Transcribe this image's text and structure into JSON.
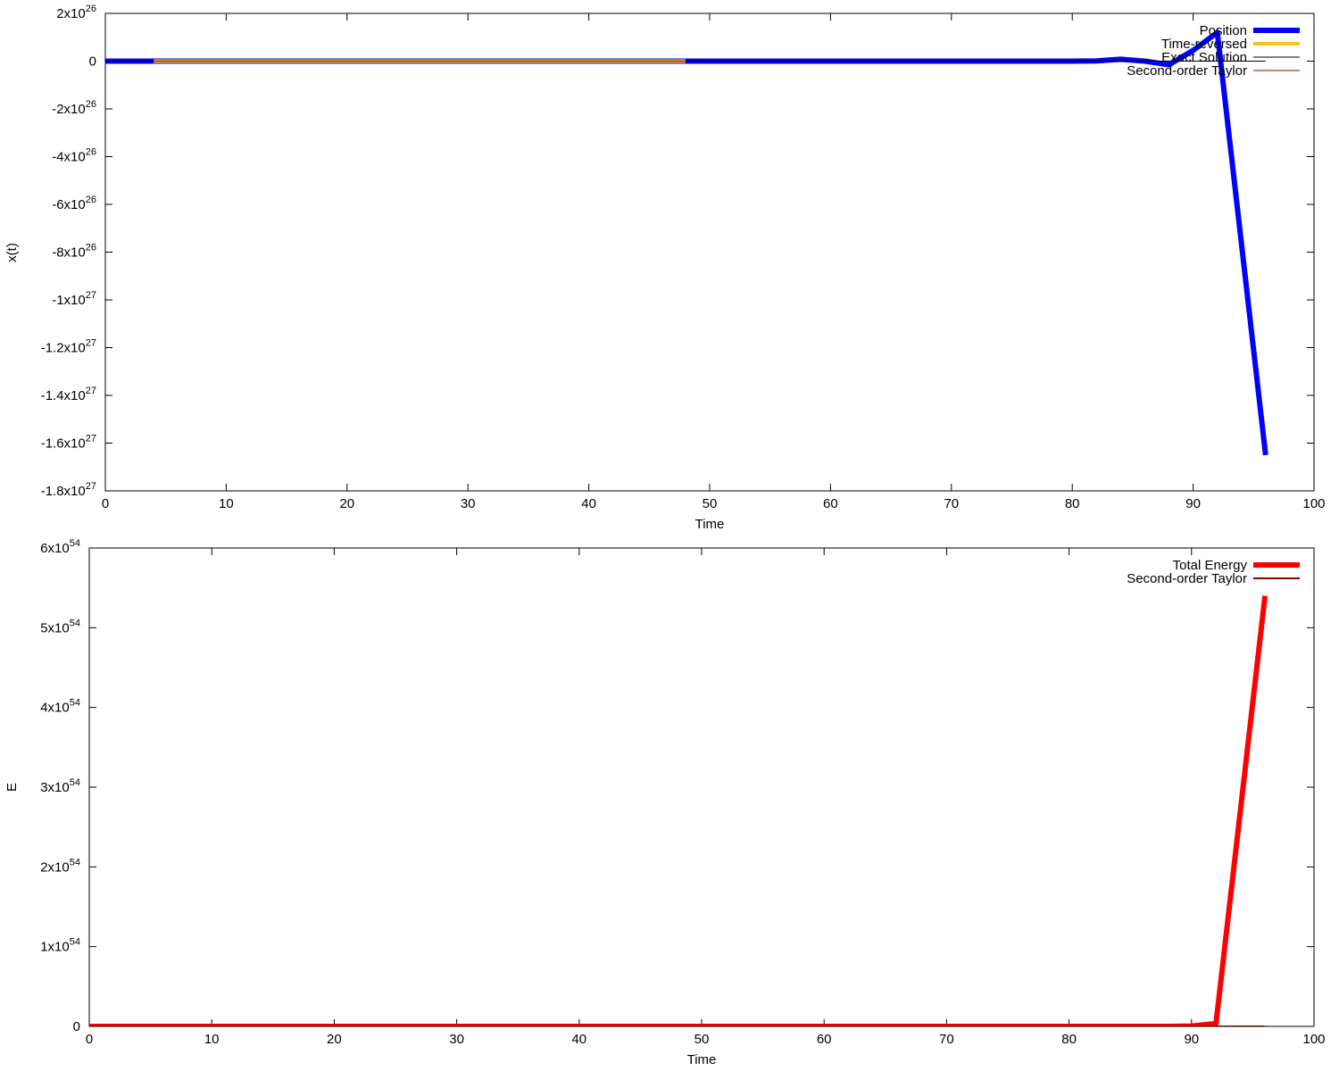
{
  "chart_data": [
    {
      "type": "line",
      "xlabel": "Time",
      "ylabel": "x(t)",
      "xlim": [
        0,
        100
      ],
      "ylim": [
        -1.8e+27,
        2e+26
      ],
      "xticks": [
        0,
        10,
        20,
        30,
        40,
        50,
        60,
        70,
        80,
        90,
        100
      ],
      "yticks": [
        {
          "value": 2e+26,
          "mant": "2x10",
          "exp": "26"
        },
        {
          "value": 0,
          "mant": "0",
          "exp": ""
        },
        {
          "value": -2e+26,
          "mant": "-2x10",
          "exp": "26"
        },
        {
          "value": -4e+26,
          "mant": "-4x10",
          "exp": "26"
        },
        {
          "value": -6e+26,
          "mant": "-6x10",
          "exp": "26"
        },
        {
          "value": -8e+26,
          "mant": "-8x10",
          "exp": "26"
        },
        {
          "value": -1e+27,
          "mant": "-1x10",
          "exp": "27"
        },
        {
          "value": -1.2e+27,
          "mant": "-1.2x10",
          "exp": "27"
        },
        {
          "value": -1.4e+27,
          "mant": "-1.4x10",
          "exp": "27"
        },
        {
          "value": -1.6e+27,
          "mant": "-1.6x10",
          "exp": "27"
        },
        {
          "value": -1.8e+27,
          "mant": "-1.8x10",
          "exp": "27"
        }
      ],
      "legend_position": "top-right",
      "series": [
        {
          "name": "Position",
          "color": "#0000ff",
          "width": 6,
          "x": [
            0,
            80,
            82,
            84,
            86,
            88,
            90,
            92,
            96
          ],
          "y": [
            0,
            0,
            1e+24,
            8e+24,
            0,
            -1.5e+25,
            4.5e+25,
            1.2e+26,
            -1.65e+27
          ]
        },
        {
          "name": "Time-reversed",
          "color": "#ffc020",
          "width": 4,
          "x": [
            4,
            48
          ],
          "y": [
            0,
            0
          ]
        },
        {
          "name": "Exact Solution",
          "color": "#000000",
          "width": 1,
          "x": [
            0,
            96
          ],
          "y": [
            0,
            0
          ]
        },
        {
          "name": "Second-order Taylor",
          "color": "#8b0000",
          "width": 1,
          "x": [
            4,
            48
          ],
          "y": [
            0,
            0
          ]
        }
      ]
    },
    {
      "type": "line",
      "xlabel": "Time",
      "ylabel": "E",
      "xlim": [
        0,
        100
      ],
      "ylim": [
        0,
        6e+54
      ],
      "xticks": [
        0,
        10,
        20,
        30,
        40,
        50,
        60,
        70,
        80,
        90,
        100
      ],
      "yticks": [
        {
          "value": 0,
          "mant": "0",
          "exp": ""
        },
        {
          "value": 1e+54,
          "mant": "1x10",
          "exp": "54"
        },
        {
          "value": 2e+54,
          "mant": "2x10",
          "exp": "54"
        },
        {
          "value": 3e+54,
          "mant": "3x10",
          "exp": "54"
        },
        {
          "value": 4e+54,
          "mant": "4x10",
          "exp": "54"
        },
        {
          "value": 5e+54,
          "mant": "5x10",
          "exp": "54"
        },
        {
          "value": 6e+54,
          "mant": "6x10",
          "exp": "54"
        }
      ],
      "legend_position": "top-right",
      "series": [
        {
          "name": "Total Energy",
          "color": "#ff0000",
          "width": 6,
          "x": [
            0,
            88,
            90,
            92,
            96
          ],
          "y": [
            0,
            0,
            5e+51,
            3.5e+52,
            5.4e+54
          ]
        },
        {
          "name": "Second-order Taylor",
          "color": "#8b0000",
          "width": 2,
          "x": [
            0,
            96
          ],
          "y": [
            0,
            0
          ]
        }
      ]
    }
  ]
}
